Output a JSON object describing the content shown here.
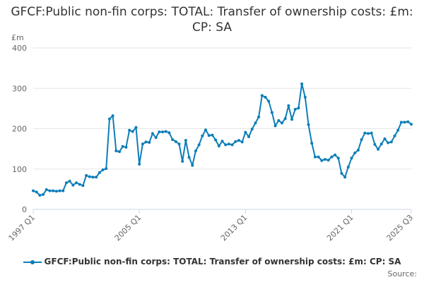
{
  "chart_data": {
    "type": "line",
    "title": "GFCF:Public non-fin corps: TOTAL: Transfer of ownership costs: £m: CP: SA",
    "ylabel": "£m",
    "xlabel": "",
    "ylim": [
      0,
      400
    ],
    "yticks": [
      "0",
      "100",
      "200",
      "300",
      "400"
    ],
    "xtick_labels": [
      "1997 Q1",
      "2005 Q1",
      "2013 Q1",
      "2021 Q1",
      "2025 Q3"
    ],
    "grid": true,
    "legend_position": "bottom",
    "series": [
      {
        "name": "GFCF:Public non-fin corps: TOTAL: Transfer of ownership costs: £m: CP: SA",
        "color": "#0d7eb9",
        "values": [
          46,
          43,
          35,
          37,
          49,
          46,
          46,
          45,
          46,
          46,
          66,
          70,
          60,
          66,
          62,
          59,
          84,
          81,
          80,
          80,
          91,
          98,
          101,
          224,
          232,
          145,
          143,
          156,
          154,
          196,
          193,
          203,
          112,
          162,
          167,
          166,
          188,
          178,
          192,
          192,
          193,
          190,
          173,
          168,
          162,
          119,
          171,
          129,
          109,
          145,
          160,
          182,
          197,
          183,
          184,
          172,
          157,
          169,
          160,
          162,
          160,
          168,
          171,
          167,
          191,
          180,
          199,
          214,
          229,
          282,
          278,
          268,
          240,
          207,
          220,
          214,
          225,
          257,
          223,
          248,
          251,
          311,
          278,
          210,
          164,
          130,
          130,
          121,
          124,
          122,
          130,
          135,
          127,
          89,
          80,
          105,
          127,
          140,
          147,
          173,
          189,
          188,
          189,
          161,
          149,
          162,
          175,
          165,
          167,
          182,
          196,
          216,
          216,
          217,
          211
        ]
      }
    ],
    "source_label": "Source:"
  }
}
